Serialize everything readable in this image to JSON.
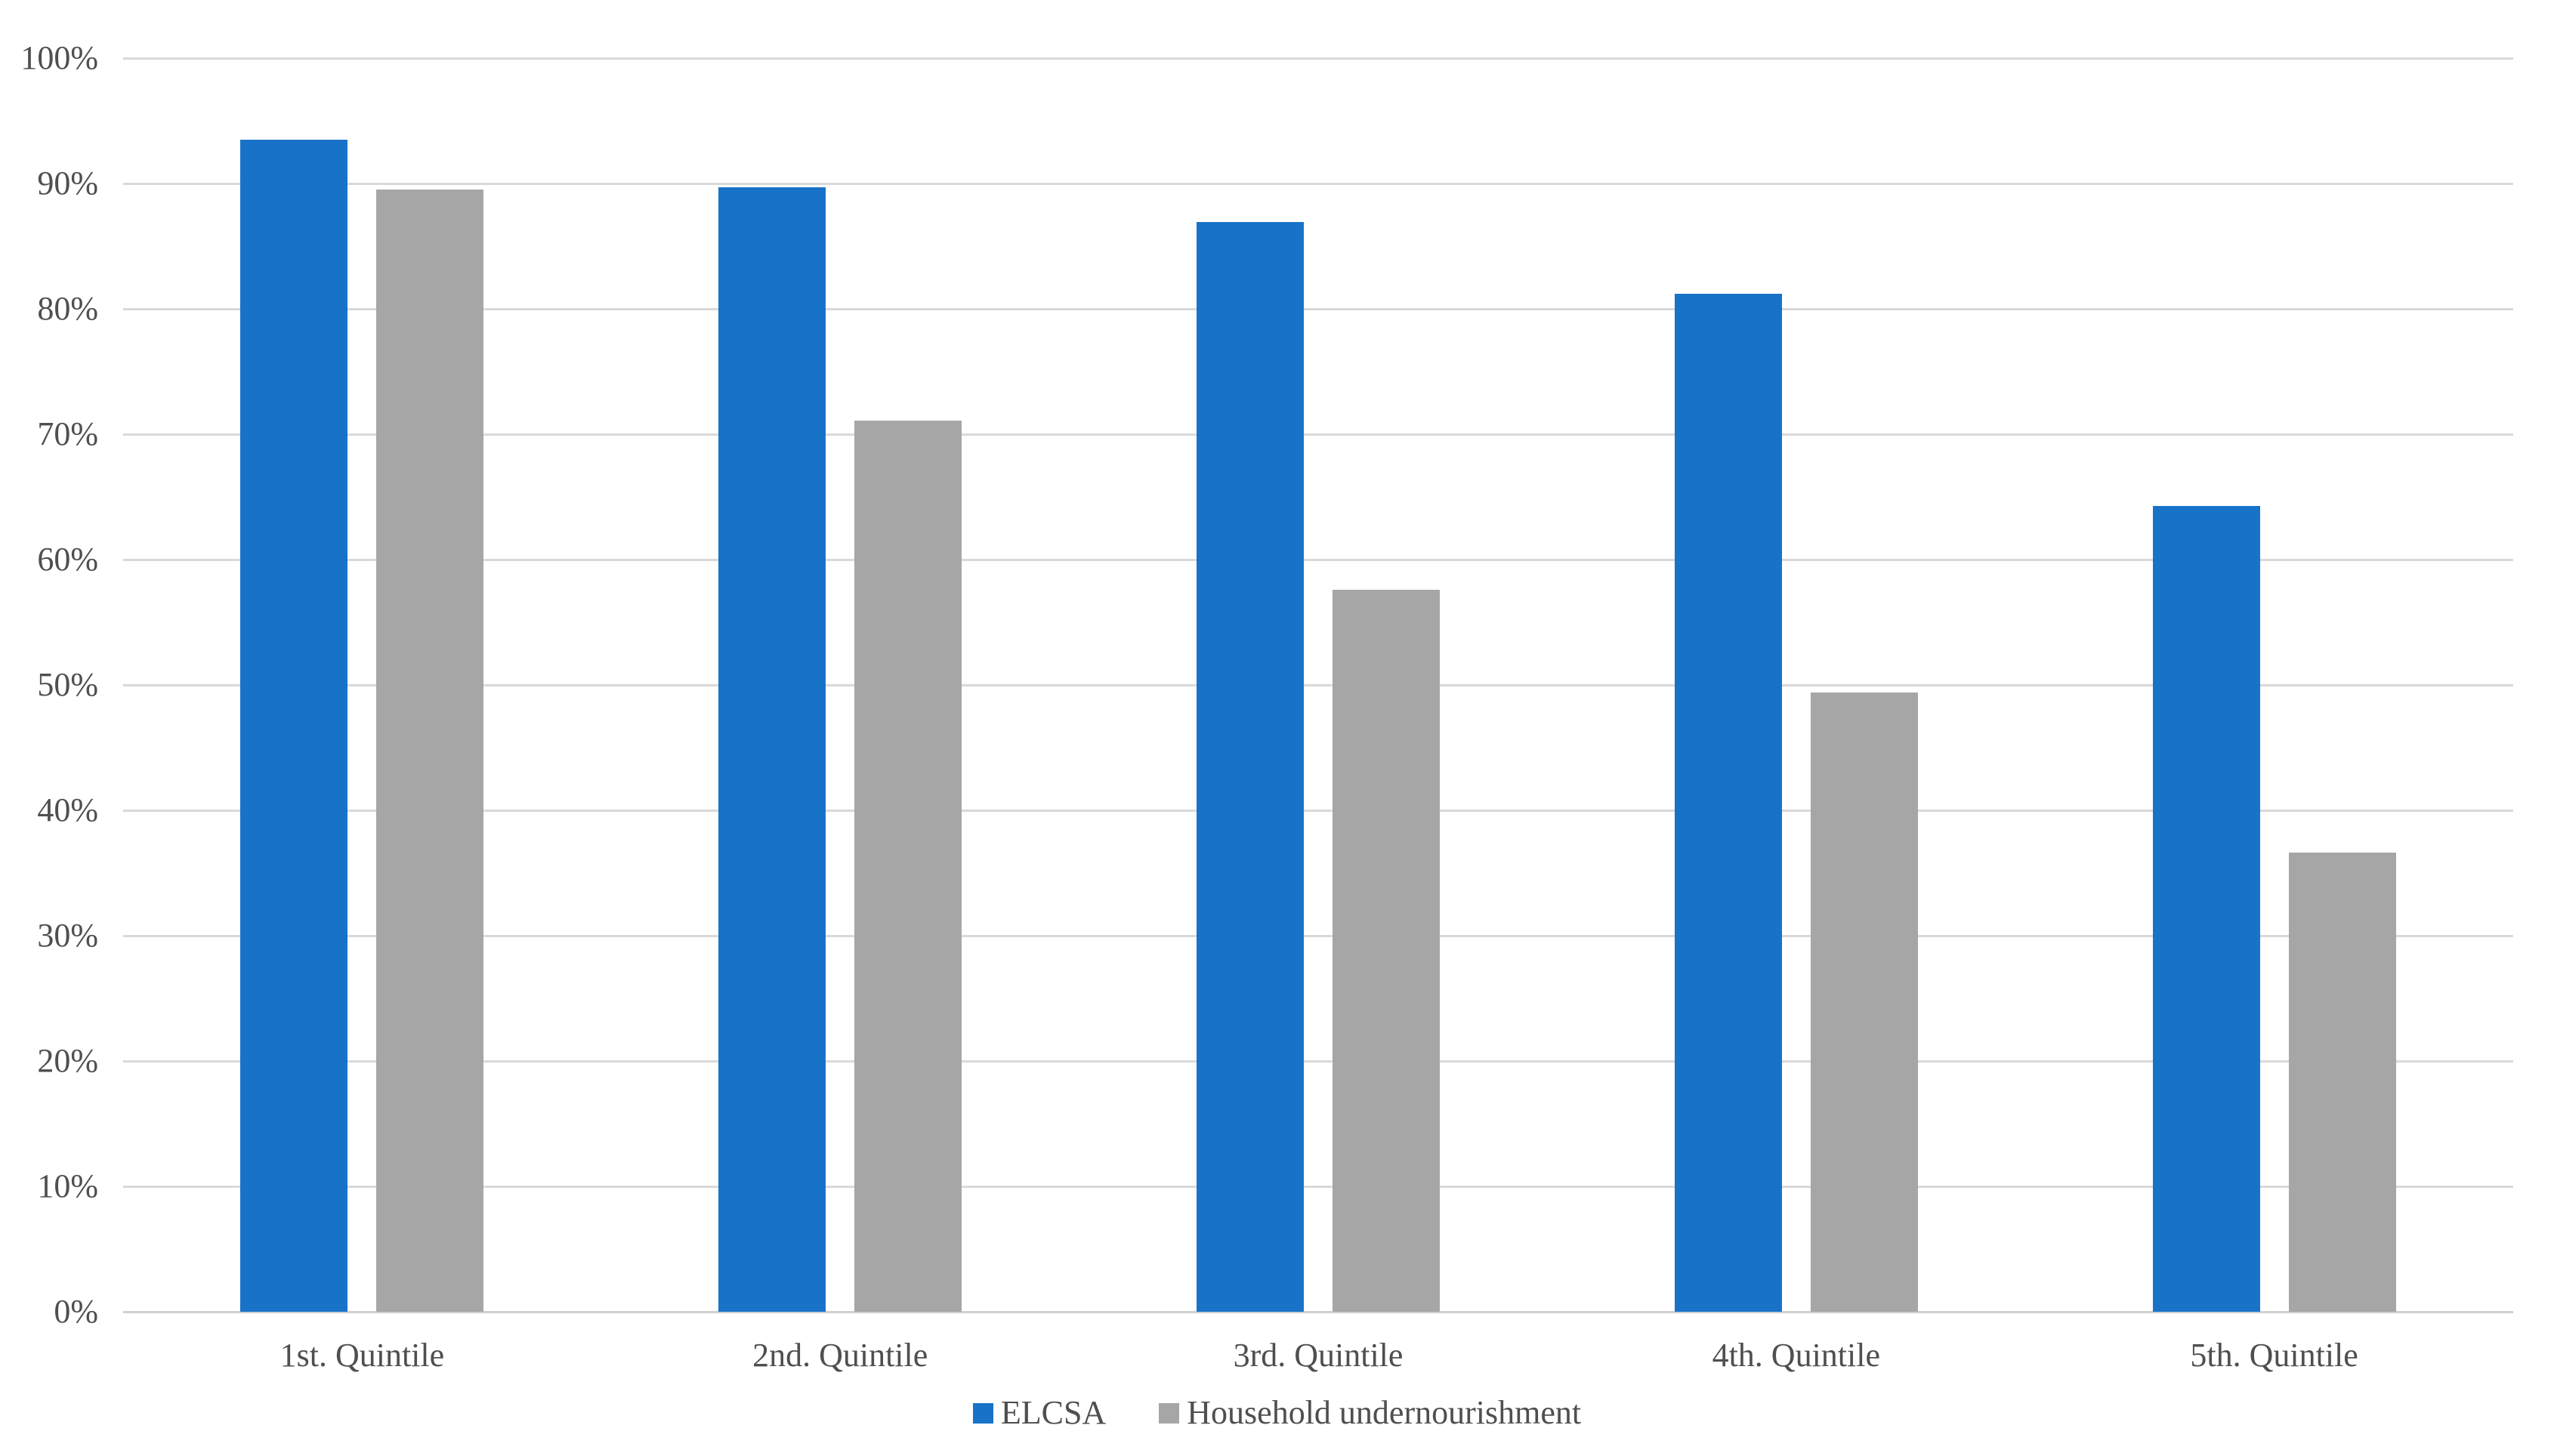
{
  "chart_data": {
    "type": "bar",
    "title": "",
    "xlabel": "",
    "ylabel": "",
    "categories": [
      "1st. Quintile",
      "2nd. Quintile",
      "3rd. Quintile",
      "4th. Quintile",
      "5th. Quintile"
    ],
    "series": [
      {
        "name": "ELCSA",
        "color": "#1873C8",
        "values": [
          93.5,
          89.7,
          86.9,
          81.2,
          64.3
        ]
      },
      {
        "name": "Household undernourishment",
        "color": "#A6A6A6",
        "values": [
          89.5,
          71.1,
          57.6,
          49.4,
          36.6
        ]
      }
    ],
    "ylim": [
      0,
      100
    ],
    "ytick_step": 10,
    "ytick_labels": [
      "0%",
      "10%",
      "20%",
      "30%",
      "40%",
      "50%",
      "60%",
      "70%",
      "80%",
      "90%",
      "100%"
    ],
    "grid": true,
    "legend_position": "bottom",
    "colors": {
      "gridline": "#D9D9D9",
      "axis_text": "#4F4F4F",
      "background": "#FFFFFF"
    }
  }
}
